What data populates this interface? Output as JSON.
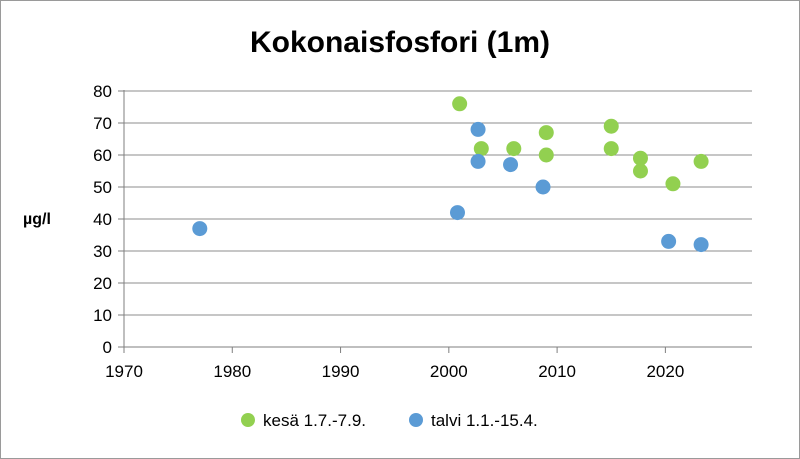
{
  "chart_data": {
    "type": "scatter",
    "title": "Kokonaisfosfori (1m)",
    "xlabel": "",
    "ylabel": "µg/l",
    "xlim": [
      1970,
      2028
    ],
    "ylim": [
      0,
      80
    ],
    "x_ticks": [
      1970,
      1980,
      1990,
      2000,
      2010,
      2020
    ],
    "y_ticks": [
      0,
      10,
      20,
      30,
      40,
      50,
      60,
      70,
      80
    ],
    "grid": "horizontal",
    "legend_position": "bottom",
    "series": [
      {
        "name": "kesä 1.7.-7.9.",
        "color": "#92d050",
        "points": [
          {
            "x": 2001,
            "y": 76
          },
          {
            "x": 2003,
            "y": 62
          },
          {
            "x": 2006,
            "y": 62
          },
          {
            "x": 2009,
            "y": 67
          },
          {
            "x": 2009,
            "y": 60
          },
          {
            "x": 2015,
            "y": 69
          },
          {
            "x": 2015,
            "y": 62
          },
          {
            "x": 2017.7,
            "y": 59
          },
          {
            "x": 2017.7,
            "y": 55
          },
          {
            "x": 2020.7,
            "y": 51
          },
          {
            "x": 2023.3,
            "y": 58
          }
        ]
      },
      {
        "name": "talvi 1.1.-15.4.",
        "color": "#5b9bd5",
        "points": [
          {
            "x": 1977,
            "y": 37
          },
          {
            "x": 2000.8,
            "y": 42
          },
          {
            "x": 2002.7,
            "y": 68
          },
          {
            "x": 2002.7,
            "y": 58
          },
          {
            "x": 2005.7,
            "y": 57
          },
          {
            "x": 2008.7,
            "y": 50
          },
          {
            "x": 2020.3,
            "y": 33
          },
          {
            "x": 2023.3,
            "y": 32
          }
        ]
      }
    ]
  }
}
